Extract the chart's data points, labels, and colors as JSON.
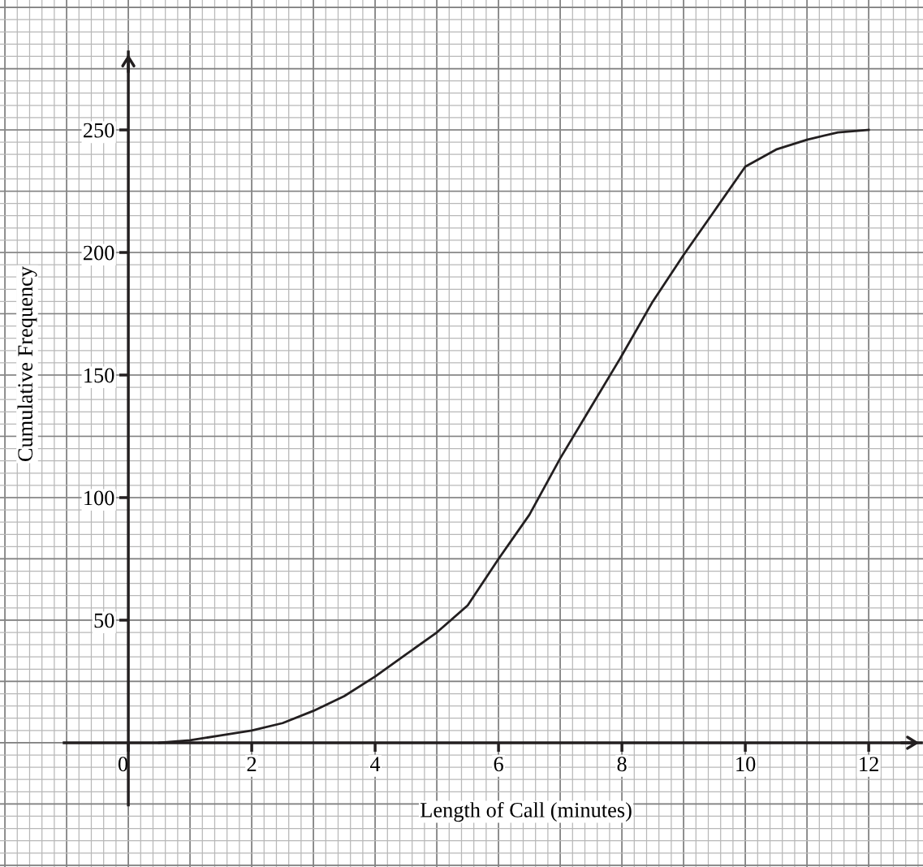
{
  "chart_data": {
    "type": "line",
    "xlabel": "Length of Call (minutes)",
    "ylabel": "Cumulative Frequency",
    "x": [
      0.5,
      1,
      1.5,
      2,
      2.5,
      3,
      3.5,
      4,
      4.5,
      5,
      5.5,
      6,
      6.5,
      7,
      7.5,
      8,
      8.5,
      9,
      9.5,
      10,
      10.5,
      11,
      11.5,
      12
    ],
    "series": [
      {
        "color": "#231f20",
        "values": [
          0,
          1,
          3,
          5,
          8,
          13,
          19,
          27,
          36,
          45,
          56,
          75,
          93,
          116,
          137,
          158,
          180,
          199,
          217,
          235,
          242,
          246,
          249,
          250
        ]
      }
    ],
    "xlim": [
      -2.08,
      12.88
    ],
    "ylim": [
      -50.7,
      303
    ],
    "xticks": [
      0,
      2,
      4,
      6,
      8,
      10,
      12
    ],
    "yticks": [
      50,
      100,
      150,
      200,
      250
    ],
    "grid": true,
    "marker": "none",
    "line_style": "solid"
  }
}
